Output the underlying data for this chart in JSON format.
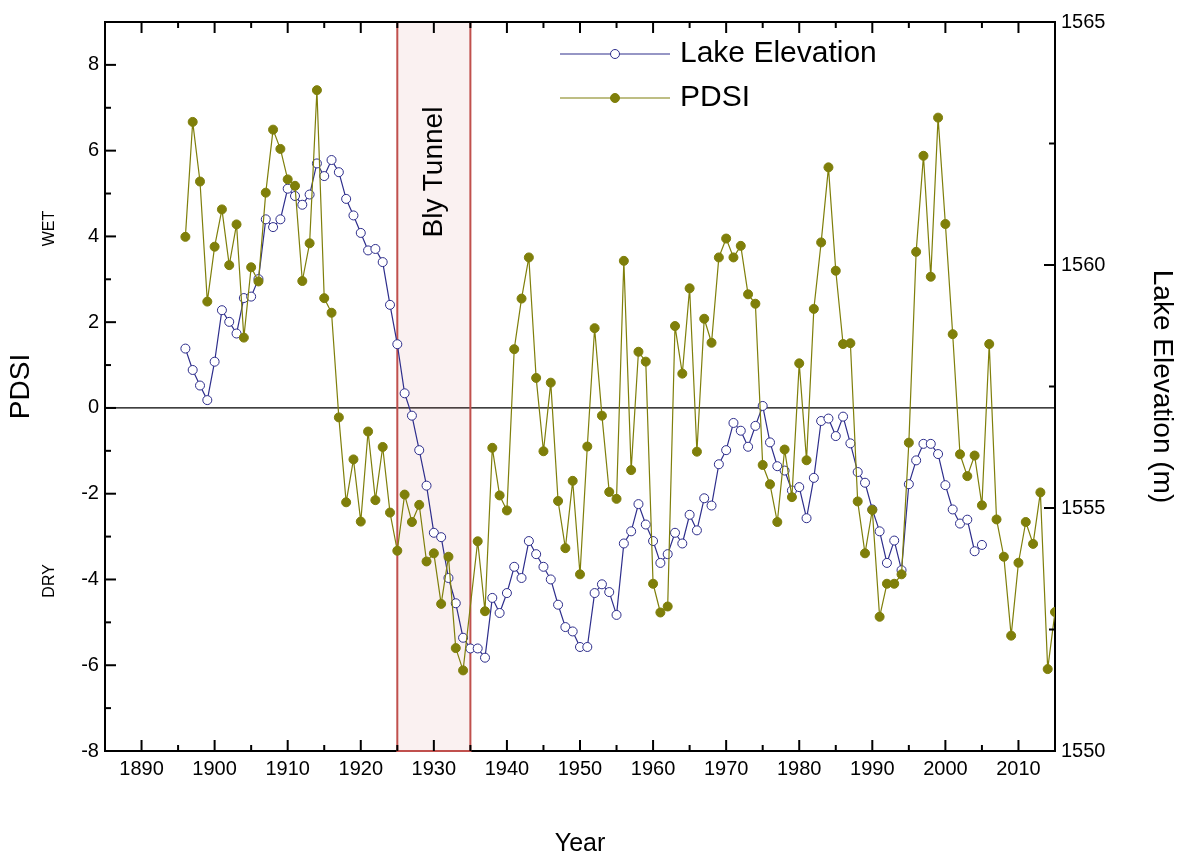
{
  "chart_data": {
    "type": "line",
    "xlabel": "Year",
    "ylabel": "PDSI",
    "y2label": "Lake Elevation (m)",
    "xlim": [
      1885,
      2015
    ],
    "xticks": [
      {
        "value": 1885,
        "label": null
      },
      1890,
      {
        "value": 1895,
        "label": null
      },
      1900,
      {
        "value": 1905,
        "label": null
      },
      1910,
      {
        "value": 1915,
        "label": null
      },
      1920,
      {
        "value": 1925,
        "label": null
      },
      1930,
      {
        "value": 1935,
        "label": null
      },
      1940,
      {
        "value": 1945,
        "label": null
      },
      1950,
      {
        "value": 1955,
        "label": null
      },
      1960,
      {
        "value": 1965,
        "label": null
      },
      1970,
      {
        "value": 1975,
        "label": null
      },
      1980,
      {
        "value": 1985,
        "label": null
      },
      1990,
      {
        "value": 1995,
        "label": null
      },
      2000,
      {
        "value": 2005,
        "label": null
      },
      2010,
      {
        "value": 2015,
        "label": null
      }
    ],
    "ylim": [
      -8,
      9
    ],
    "yticks": [
      -8,
      {
        "value": -7,
        "label": null
      },
      -6,
      {
        "value": -5,
        "label": null
      },
      -4,
      {
        "value": -3,
        "label": null
      },
      -2,
      {
        "value": -1,
        "label": null
      },
      0,
      {
        "value": 1,
        "label": null
      },
      2,
      {
        "value": 3,
        "label": null
      },
      4,
      {
        "value": 5,
        "label": null
      },
      6,
      {
        "value": 7,
        "label": null
      },
      8
    ],
    "y2lim": [
      1550,
      1565
    ],
    "y2ticks": [
      1550,
      {
        "value": 1552.5,
        "label": null
      },
      1555,
      {
        "value": 1557.5,
        "label": null
      },
      1560,
      {
        "value": 1562.5,
        "label": null
      },
      1565
    ],
    "grid": false,
    "legend": "top right",
    "marker": "circle",
    "line_style": "solid",
    "annotations": [
      "WET",
      "DRY"
    ],
    "ref_lines": [
      {
        "axis": "y",
        "value": 0,
        "color": "#000000"
      }
    ],
    "bands": [
      {
        "axis": "x",
        "from": 1925,
        "to": 1935,
        "label": "Bly Tunnel",
        "color": "#c0504d"
      }
    ],
    "series": [
      {
        "name": "Lake Elevation",
        "color": "#2e2e8c",
        "axis": "y2",
        "x": [
          1896,
          1897,
          1898,
          1899,
          1900,
          1901,
          1902,
          1903,
          1904,
          1905,
          1906,
          1907,
          1908,
          1909,
          1910,
          1911,
          1912,
          1913,
          1914,
          1915,
          1916,
          1917,
          1918,
          1919,
          1920,
          1921,
          1922,
          1923,
          1924,
          1925,
          1926,
          1927,
          1928,
          1929,
          1930,
          1931,
          1932,
          1933,
          1934,
          1935,
          1936,
          1937,
          1938,
          1939,
          1940,
          1941,
          1942,
          1943,
          1944,
          1945,
          1946,
          1947,
          1948,
          1949,
          1950,
          1951,
          1952,
          1953,
          1954,
          1955,
          1956,
          1957,
          1958,
          1959,
          1960,
          1961,
          1962,
          1963,
          1964,
          1965,
          1966,
          1967,
          1968,
          1969,
          1970,
          1971,
          1972,
          1973,
          1974,
          1975,
          1976,
          1977,
          1978,
          1979,
          1980,
          1981,
          1982,
          1983,
          1984,
          1985,
          1986,
          1987,
          1988,
          1989,
          1990,
          1991,
          1992,
          1993,
          1994,
          1995,
          1996,
          1997,
          1998,
          1999,
          2000,
          2001,
          2002,
          2003,
          2004,
          2005
        ],
        "values": [
          1558.28,
          1557.84,
          1557.52,
          1557.22,
          1558.01,
          1559.07,
          1558.83,
          1558.59,
          1559.32,
          1559.35,
          1559.71,
          1560.94,
          1560.78,
          1560.94,
          1561.57,
          1561.42,
          1561.24,
          1561.45,
          1562.09,
          1561.83,
          1562.16,
          1561.91,
          1561.36,
          1561.02,
          1560.66,
          1560.3,
          1560.33,
          1560.06,
          1559.18,
          1558.37,
          1557.36,
          1556.9,
          1556.19,
          1555.46,
          1554.49,
          1554.4,
          1553.56,
          1553.04,
          1552.33,
          1552.11,
          1552.11,
          1551.92,
          1553.15,
          1552.84,
          1553.25,
          1553.79,
          1553.56,
          1554.32,
          1554.05,
          1553.79,
          1553.53,
          1553.01,
          1552.55,
          1552.46,
          1552.14,
          1552.14,
          1553.25,
          1553.43,
          1553.27,
          1552.8,
          1554.27,
          1554.52,
          1555.08,
          1554.66,
          1554.32,
          1553.87,
          1554.05,
          1554.49,
          1554.27,
          1554.86,
          1554.54,
          1555.2,
          1555.05,
          1555.9,
          1556.19,
          1556.75,
          1556.59,
          1556.26,
          1556.69,
          1557.1,
          1556.35,
          1555.86,
          1555.77,
          1555.36,
          1555.43,
          1554.79,
          1555.62,
          1556.79,
          1556.84,
          1556.48,
          1556.88,
          1556.33,
          1555.74,
          1555.52,
          1554.97,
          1554.52,
          1553.87,
          1554.33,
          1553.72,
          1555.49,
          1555.98,
          1556.32,
          1556.32,
          1556.11,
          1555.47,
          1554.97,
          1554.68,
          1554.76,
          1554.11,
          1554.24
        ]
      },
      {
        "name": "PDSI",
        "color": "#7f7f0a",
        "x": [
          1896,
          1897,
          1898,
          1899,
          1900,
          1901,
          1902,
          1903,
          1904,
          1905,
          1906,
          1907,
          1908,
          1909,
          1910,
          1911,
          1912,
          1913,
          1914,
          1915,
          1916,
          1917,
          1918,
          1919,
          1920,
          1921,
          1922,
          1923,
          1924,
          1925,
          1926,
          1927,
          1928,
          1929,
          1930,
          1931,
          1932,
          1933,
          1934,
          1935,
          1936,
          1937,
          1938,
          1939,
          1940,
          1941,
          1942,
          1943,
          1944,
          1945,
          1946,
          1947,
          1948,
          1949,
          1950,
          1951,
          1952,
          1953,
          1954,
          1955,
          1956,
          1957,
          1958,
          1959,
          1960,
          1961,
          1962,
          1963,
          1964,
          1965,
          1966,
          1967,
          1968,
          1969,
          1970,
          1971,
          1972,
          1973,
          1974,
          1975,
          1976,
          1977,
          1978,
          1979,
          1980,
          1981,
          1982,
          1983,
          1984,
          1985,
          1986,
          1987,
          1988,
          1989,
          1990,
          1991,
          1992,
          1993,
          1994,
          1995,
          1996,
          1997,
          1998,
          1999,
          2000,
          2001,
          2002,
          2003,
          2004,
          2005,
          2006,
          2007,
          2008,
          2009,
          2010,
          2011,
          2012,
          2013,
          2014,
          2015
        ],
        "values": [
          3.99,
          6.67,
          5.28,
          2.48,
          3.76,
          4.63,
          3.33,
          4.28,
          1.64,
          3.28,
          2.95,
          5.02,
          6.49,
          6.04,
          5.33,
          5.18,
          2.96,
          3.84,
          7.41,
          2.56,
          2.22,
          -0.22,
          -2.2,
          -1.2,
          -2.65,
          -0.55,
          -2.15,
          -0.91,
          -2.44,
          -3.33,
          -2.02,
          -2.66,
          -2.26,
          -3.58,
          -3.39,
          -4.57,
          -3.47,
          -5.6,
          -6.12,
          null,
          -3.11,
          -4.74,
          -0.93,
          -2.04,
          -2.39,
          1.37,
          2.55,
          3.51,
          0.7,
          -1.01,
          0.59,
          -2.17,
          -3.27,
          -1.7,
          -3.88,
          -0.9,
          1.86,
          -0.18,
          -1.96,
          -2.12,
          3.43,
          -1.45,
          1.31,
          1.08,
          -4.1,
          -4.77,
          -4.63,
          1.91,
          0.8,
          2.79,
          -1.02,
          2.08,
          1.52,
          3.51,
          3.95,
          3.51,
          3.78,
          2.65,
          2.43,
          -1.33,
          -1.78,
          -2.66,
          -0.97,
          -2.08,
          1.04,
          -1.22,
          2.31,
          3.86,
          5.61,
          3.2,
          1.49,
          1.51,
          -2.18,
          -3.39,
          -2.38,
          -4.87,
          -4.1,
          -4.1,
          -3.88,
          -0.81,
          3.64,
          5.88,
          3.06,
          6.77,
          4.29,
          1.72,
          -1.08,
          -1.59,
          -1.11,
          -2.27,
          1.49,
          -2.6,
          -3.47,
          -5.31,
          -3.61,
          -2.66,
          -3.17,
          -1.97,
          -6.09,
          -4.76
        ]
      }
    ]
  }
}
